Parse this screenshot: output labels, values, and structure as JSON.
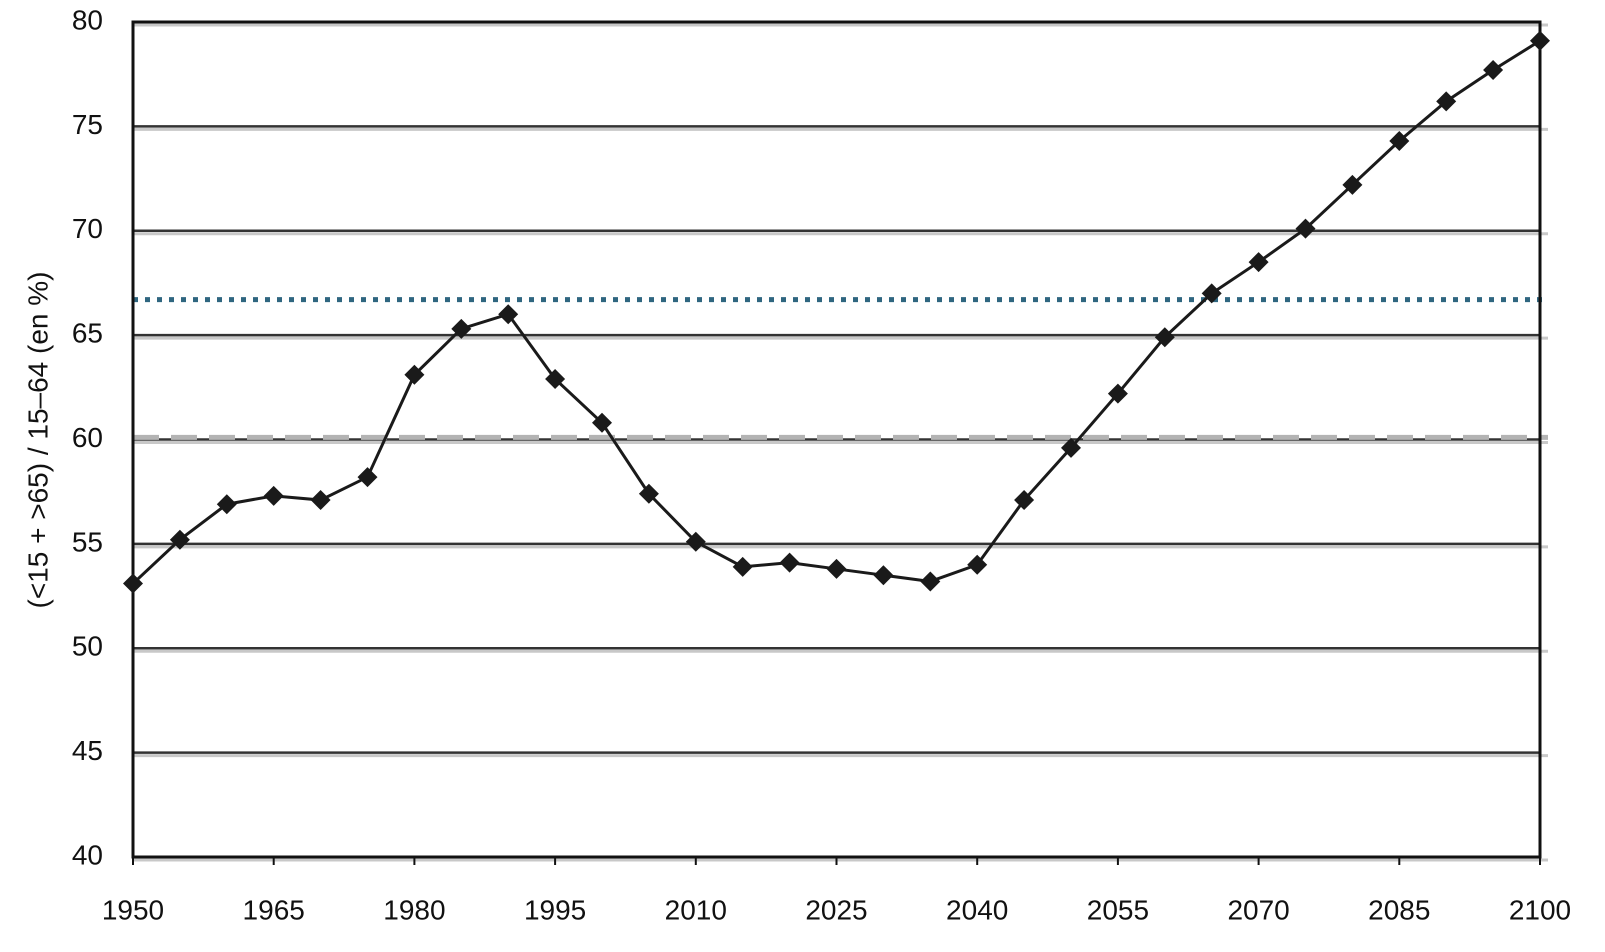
{
  "chart_data": {
    "type": "line",
    "y_label": "(<15 + >65) / 15–64  (en %)",
    "x": [
      1950,
      1955,
      1960,
      1965,
      1970,
      1975,
      1980,
      1985,
      1990,
      1995,
      2000,
      2005,
      2010,
      2015,
      2020,
      2025,
      2030,
      2035,
      2040,
      2045,
      2050,
      2055,
      2060,
      2065,
      2070,
      2075,
      2080,
      2085,
      2090,
      2095,
      2100
    ],
    "series": [
      {
        "color": "#1a1a1a",
        "values": [
          53.1,
          55.2,
          56.9,
          57.3,
          57.1,
          58.2,
          63.1,
          65.3,
          66.0,
          62.9,
          60.8,
          57.4,
          55.1,
          53.9,
          54.1,
          53.8,
          53.5,
          53.2,
          54.0,
          57.1,
          59.6,
          62.2,
          64.9,
          67.0,
          68.5,
          70.1,
          72.2,
          74.3,
          76.2,
          77.7,
          79.1
        ]
      }
    ],
    "reference_lines": [
      {
        "value": 66.7,
        "style": "dotted",
        "color": "#2f6680"
      },
      {
        "value": 60.1,
        "style": "dashed",
        "color": "#b3b3b3"
      }
    ],
    "xlim": [
      1950,
      2100
    ],
    "xticks": [
      1950,
      1965,
      1980,
      1995,
      2010,
      2025,
      2040,
      2055,
      2070,
      2085,
      2100
    ],
    "ylim": [
      40,
      80
    ],
    "yticks": [
      40,
      45,
      50,
      55,
      60,
      65,
      70,
      75,
      80
    ],
    "grid": true
  }
}
